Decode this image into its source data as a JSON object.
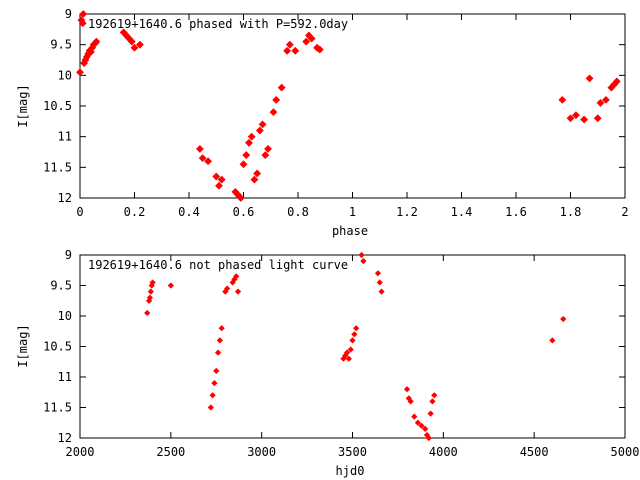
{
  "marker_color": "#ff0000",
  "chart_data": [
    {
      "type": "scatter",
      "title": "192619+1640.6 phased with P=592.0day",
      "xlabel": "phase",
      "ylabel": "I[mag]",
      "xlim": [
        0,
        2
      ],
      "ylim": [
        12,
        9
      ],
      "y_inverted": true,
      "grid": false,
      "legend": "none",
      "xticks": [
        "0",
        "0.2",
        "0.4",
        "0.6",
        "0.8",
        "1",
        "1.2",
        "1.4",
        "1.6",
        "1.8",
        "2"
      ],
      "yticks": [
        "9",
        "9.5",
        "10",
        "10.5",
        "11",
        "11.5",
        "12"
      ],
      "points": [
        [
          0.0,
          9.95
        ],
        [
          0.005,
          9.1
        ],
        [
          0.01,
          9.15
        ],
        [
          0.012,
          9.0
        ],
        [
          0.015,
          9.8
        ],
        [
          0.02,
          9.75
        ],
        [
          0.025,
          9.7
        ],
        [
          0.03,
          9.65
        ],
        [
          0.035,
          9.6
        ],
        [
          0.04,
          9.62
        ],
        [
          0.045,
          9.55
        ],
        [
          0.05,
          9.5
        ],
        [
          0.055,
          9.48
        ],
        [
          0.06,
          9.45
        ],
        [
          0.16,
          9.3
        ],
        [
          0.17,
          9.35
        ],
        [
          0.18,
          9.4
        ],
        [
          0.19,
          9.45
        ],
        [
          0.2,
          9.55
        ],
        [
          0.22,
          9.5
        ],
        [
          0.44,
          11.2
        ],
        [
          0.45,
          11.35
        ],
        [
          0.47,
          11.4
        ],
        [
          0.5,
          11.65
        ],
        [
          0.51,
          11.8
        ],
        [
          0.52,
          11.7
        ],
        [
          0.57,
          11.9
        ],
        [
          0.58,
          11.95
        ],
        [
          0.59,
          12.0
        ],
        [
          0.6,
          11.45
        ],
        [
          0.61,
          11.3
        ],
        [
          0.62,
          11.1
        ],
        [
          0.63,
          11.0
        ],
        [
          0.64,
          11.7
        ],
        [
          0.65,
          11.6
        ],
        [
          0.66,
          10.9
        ],
        [
          0.67,
          10.8
        ],
        [
          0.68,
          11.3
        ],
        [
          0.69,
          11.2
        ],
        [
          0.71,
          10.6
        ],
        [
          0.72,
          10.4
        ],
        [
          0.74,
          10.2
        ],
        [
          0.76,
          9.6
        ],
        [
          0.77,
          9.5
        ],
        [
          0.79,
          9.6
        ],
        [
          0.83,
          9.45
        ],
        [
          0.84,
          9.35
        ],
        [
          0.85,
          9.4
        ],
        [
          0.87,
          9.55
        ],
        [
          0.88,
          9.58
        ],
        [
          1.77,
          10.4
        ],
        [
          1.8,
          10.7
        ],
        [
          1.82,
          10.65
        ],
        [
          1.85,
          10.72
        ],
        [
          1.87,
          10.05
        ],
        [
          1.9,
          10.7
        ],
        [
          1.91,
          10.45
        ],
        [
          1.93,
          10.4
        ],
        [
          1.95,
          10.2
        ],
        [
          1.96,
          10.15
        ],
        [
          1.97,
          10.1
        ]
      ]
    },
    {
      "type": "scatter",
      "title": "192619+1640.6 not phased light curve",
      "xlabel": "hjd0",
      "ylabel": "I[mag]",
      "xlim": [
        2000,
        5000
      ],
      "ylim": [
        12,
        9
      ],
      "y_inverted": true,
      "grid": false,
      "legend": "none",
      "xticks": [
        "2000",
        "2500",
        "3000",
        "3500",
        "4000",
        "4500",
        "5000"
      ],
      "yticks": [
        "9",
        "9.5",
        "10",
        "10.5",
        "11",
        "11.5",
        "12"
      ],
      "points": [
        [
          2370,
          9.95
        ],
        [
          2380,
          9.75
        ],
        [
          2385,
          9.7
        ],
        [
          2390,
          9.6
        ],
        [
          2395,
          9.5
        ],
        [
          2400,
          9.45
        ],
        [
          2500,
          9.5
        ],
        [
          2720,
          11.5
        ],
        [
          2730,
          11.3
        ],
        [
          2740,
          11.1
        ],
        [
          2750,
          10.9
        ],
        [
          2760,
          10.6
        ],
        [
          2770,
          10.4
        ],
        [
          2780,
          10.2
        ],
        [
          2800,
          9.6
        ],
        [
          2810,
          9.55
        ],
        [
          2840,
          9.45
        ],
        [
          2850,
          9.4
        ],
        [
          2860,
          9.35
        ],
        [
          2870,
          9.6
        ],
        [
          3450,
          10.7
        ],
        [
          3460,
          10.65
        ],
        [
          3470,
          10.6
        ],
        [
          3480,
          10.7
        ],
        [
          3490,
          10.55
        ],
        [
          3500,
          10.4
        ],
        [
          3510,
          10.3
        ],
        [
          3520,
          10.2
        ],
        [
          3550,
          9.0
        ],
        [
          3560,
          9.1
        ],
        [
          3640,
          9.3
        ],
        [
          3650,
          9.45
        ],
        [
          3660,
          9.6
        ],
        [
          3800,
          11.2
        ],
        [
          3810,
          11.35
        ],
        [
          3820,
          11.4
        ],
        [
          3840,
          11.65
        ],
        [
          3860,
          11.75
        ],
        [
          3880,
          11.8
        ],
        [
          3900,
          11.85
        ],
        [
          3910,
          11.95
        ],
        [
          3920,
          12.0
        ],
        [
          3930,
          11.6
        ],
        [
          3940,
          11.4
        ],
        [
          3950,
          11.3
        ],
        [
          4600,
          10.4
        ],
        [
          4660,
          10.05
        ]
      ]
    }
  ]
}
